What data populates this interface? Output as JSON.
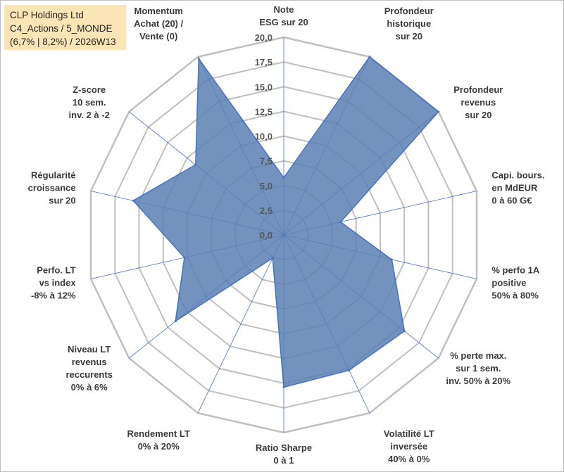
{
  "title_box": {
    "line1": "CLP Holdings Ltd",
    "line2": "C4_Actions / 5_MONDE",
    "line3": "(6,7% | 8,2%) / 2026W13"
  },
  "chart_data": {
    "type": "radar",
    "rmin": 0,
    "rmax": 20,
    "tick_step": 2.5,
    "tick_labels": [
      "0,0",
      "2,5",
      "5,0",
      "7,5",
      "10,0",
      "12,5",
      "15,0",
      "17,5",
      "20,0"
    ],
    "axes": [
      {
        "label": [
          "Note",
          "ESG sur 20"
        ],
        "value": 5.8
      },
      {
        "label": [
          "Profondeur",
          "historique",
          "sur 20"
        ],
        "value": 20.0
      },
      {
        "label": [
          "Profondeur",
          "revenus",
          "sur 20"
        ],
        "value": 20.0
      },
      {
        "label": [
          "Capi. bours.",
          "en MdEUR",
          "0 à 60 G€"
        ],
        "value": 5.9
      },
      {
        "label": [
          "% perfo 1A",
          "positive",
          "50% à 80%"
        ],
        "value": 11.2
      },
      {
        "label": [
          "% perte max.",
          "sur 1 sem.",
          "inv. 50% à 20%"
        ],
        "value": 15.6
      },
      {
        "label": [
          "Volatilité LT",
          "inversée",
          "40% à 0%"
        ],
        "value": 15.2
      },
      {
        "label": [
          "Ratio Sharpe",
          "0 à 1"
        ],
        "value": 15.4
      },
      {
        "label": [
          "Rendement LT",
          "0% à 20%"
        ],
        "value": 2.6
      },
      {
        "label": [
          "Niveau LT",
          "revenus",
          "reccurents",
          "0% à 6%"
        ],
        "value": 14.0
      },
      {
        "label": [
          "Perfo. LT",
          "vs index",
          "-8% à 12%"
        ],
        "value": 10.3
      },
      {
        "label": [
          "Régularité",
          "croissance",
          "sur 20"
        ],
        "value": 15.6
      },
      {
        "label": [
          "Z-score",
          "10 sem.",
          "inv. 2 à -2"
        ],
        "value": 11.4
      },
      {
        "label": [
          "Momentum",
          "Achat (20) /",
          "Vente (0)"
        ],
        "value": 19.8
      }
    ],
    "colors": {
      "fill": "#5b7fb3",
      "stroke": "#4472c4",
      "grid": "#bfbfbf",
      "spoke": "#4472c4"
    }
  }
}
